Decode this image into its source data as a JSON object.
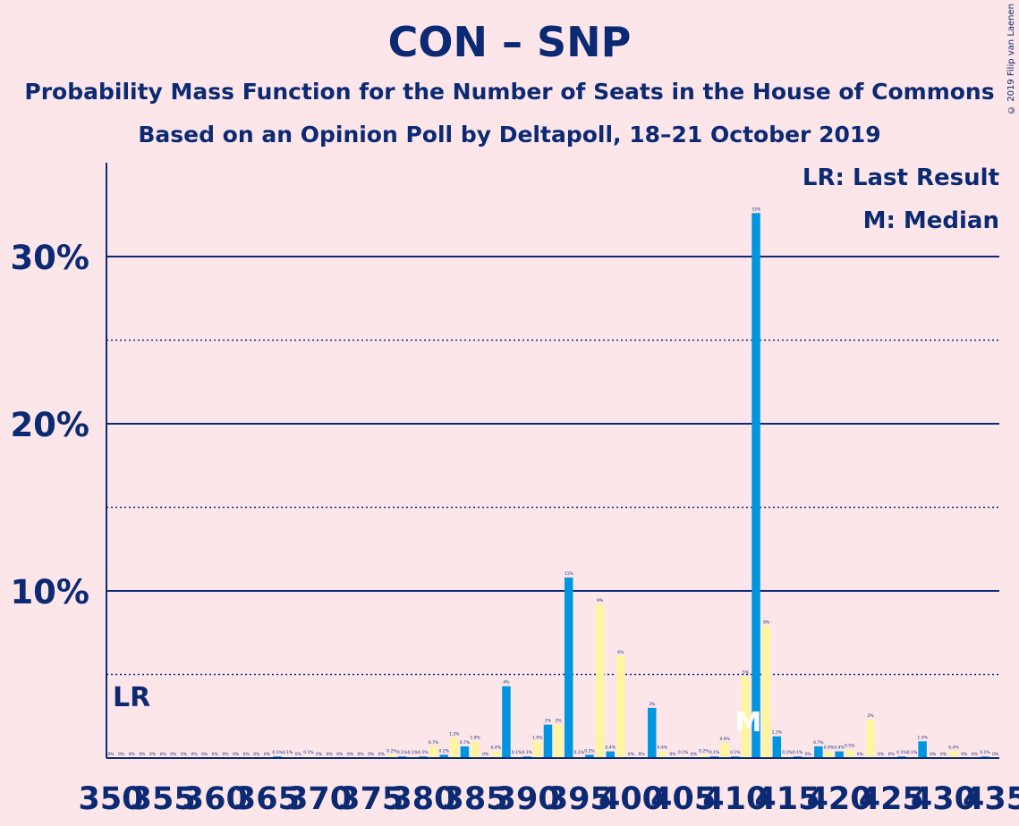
{
  "header": {
    "title": "CON – SNP",
    "subtitle": "Probability Mass Function for the Number of Seats in the House of Commons",
    "subsubtitle": "Based on an Opinion Poll by Deltapoll, 18–21 October 2019",
    "copyright": "© 2019 Filip van Laenen"
  },
  "legend": {
    "lr": "LR: Last Result",
    "m": "M: Median"
  },
  "colors": {
    "background": "#fde6ea",
    "text": "#0b2a73",
    "blue_bar": "#0096df",
    "yellow_bar": "#fff5a0"
  },
  "chart_data": {
    "type": "bar",
    "x_min": 350,
    "x_max": 435,
    "ylim": [
      0,
      35
    ],
    "y_ticks": [
      10,
      20,
      30
    ],
    "y_tick_labels": [
      "10%",
      "20%",
      "30%"
    ],
    "dotted_gridlines": [
      5,
      15,
      25
    ],
    "x_tick_values": [
      350,
      355,
      360,
      365,
      370,
      375,
      380,
      385,
      390,
      395,
      400,
      405,
      410,
      415,
      420,
      425,
      430,
      435
    ],
    "last_result_seat": 350,
    "last_result_label": "LR",
    "median_seat": 411,
    "median_label": "M",
    "bars": [
      {
        "seat": 350,
        "value": 0.0,
        "label": "0%"
      },
      {
        "seat": 351,
        "value": 0.0,
        "label": "0%"
      },
      {
        "seat": 352,
        "value": 0.0,
        "label": "0%"
      },
      {
        "seat": 353,
        "value": 0.0,
        "label": "0%"
      },
      {
        "seat": 354,
        "value": 0.0,
        "label": "0%"
      },
      {
        "seat": 355,
        "value": 0.0,
        "label": "0%"
      },
      {
        "seat": 356,
        "value": 0.0,
        "label": "0%"
      },
      {
        "seat": 357,
        "value": 0.0,
        "label": "0%"
      },
      {
        "seat": 358,
        "value": 0.0,
        "label": "0%"
      },
      {
        "seat": 359,
        "value": 0.0,
        "label": "0%"
      },
      {
        "seat": 360,
        "value": 0.0,
        "label": "0%"
      },
      {
        "seat": 361,
        "value": 0.0,
        "label": "0%"
      },
      {
        "seat": 362,
        "value": 0.0,
        "label": "0%"
      },
      {
        "seat": 363,
        "value": 0.0,
        "label": "0%"
      },
      {
        "seat": 364,
        "value": 0.0,
        "label": "0%"
      },
      {
        "seat": 365,
        "value": 0.0,
        "label": "0%"
      },
      {
        "seat": 366,
        "value": 0.1,
        "label": "0.1%"
      },
      {
        "seat": 367,
        "value": 0.1,
        "label": "0.1%"
      },
      {
        "seat": 368,
        "value": 0.0,
        "label": "0%"
      },
      {
        "seat": 369,
        "value": 0.1,
        "label": "0.1%"
      },
      {
        "seat": 370,
        "value": 0.0,
        "label": "0%"
      },
      {
        "seat": 371,
        "value": 0.0,
        "label": "0%"
      },
      {
        "seat": 372,
        "value": 0.0,
        "label": "0%"
      },
      {
        "seat": 373,
        "value": 0.0,
        "label": "0%"
      },
      {
        "seat": 374,
        "value": 0.0,
        "label": "0%"
      },
      {
        "seat": 375,
        "value": 0.0,
        "label": "0%"
      },
      {
        "seat": 376,
        "value": 0.0,
        "label": "0%"
      },
      {
        "seat": 377,
        "value": 0.2,
        "label": "0.2%"
      },
      {
        "seat": 378,
        "value": 0.1,
        "label": "0.1%"
      },
      {
        "seat": 379,
        "value": 0.1,
        "label": "0.1%"
      },
      {
        "seat": 380,
        "value": 0.1,
        "label": "0.1%"
      },
      {
        "seat": 381,
        "value": 0.7,
        "label": "0.7%"
      },
      {
        "seat": 382,
        "value": 0.2,
        "label": "0.2%"
      },
      {
        "seat": 383,
        "value": 1.2,
        "label": "1.2%"
      },
      {
        "seat": 384,
        "value": 0.7,
        "label": "0.7%"
      },
      {
        "seat": 385,
        "value": 1.0,
        "label": "1.0%"
      },
      {
        "seat": 386,
        "value": 0.0,
        "label": "0%"
      },
      {
        "seat": 387,
        "value": 0.4,
        "label": "0.4%"
      },
      {
        "seat": 388,
        "value": 4.3,
        "label": "4%"
      },
      {
        "seat": 389,
        "value": 0.1,
        "label": "0.1%"
      },
      {
        "seat": 390,
        "value": 0.1,
        "label": "0.1%"
      },
      {
        "seat": 391,
        "value": 1.0,
        "label": "1.0%"
      },
      {
        "seat": 392,
        "value": 2.0,
        "label": "2%"
      },
      {
        "seat": 393,
        "value": 2.0,
        "label": "2%"
      },
      {
        "seat": 394,
        "value": 10.8,
        "label": "11%"
      },
      {
        "seat": 395,
        "value": 0.1,
        "label": "0.1%"
      },
      {
        "seat": 396,
        "value": 0.2,
        "label": "0.2%"
      },
      {
        "seat": 397,
        "value": 9.2,
        "label": "9%"
      },
      {
        "seat": 398,
        "value": 0.4,
        "label": "0.4%"
      },
      {
        "seat": 399,
        "value": 6.1,
        "label": "6%"
      },
      {
        "seat": 400,
        "value": 0.0,
        "label": "0%"
      },
      {
        "seat": 401,
        "value": 0.0,
        "label": "0%"
      },
      {
        "seat": 402,
        "value": 3.0,
        "label": "3%"
      },
      {
        "seat": 403,
        "value": 0.4,
        "label": "0.4%"
      },
      {
        "seat": 404,
        "value": 0.0,
        "label": "0%"
      },
      {
        "seat": 405,
        "value": 0.1,
        "label": "0.1%"
      },
      {
        "seat": 406,
        "value": 0.0,
        "label": "0%"
      },
      {
        "seat": 407,
        "value": 0.2,
        "label": "0.2%"
      },
      {
        "seat": 408,
        "value": 0.1,
        "label": "0.1%"
      },
      {
        "seat": 409,
        "value": 0.9,
        "label": "0.9%"
      },
      {
        "seat": 410,
        "value": 0.1,
        "label": "0.1%"
      },
      {
        "seat": 411,
        "value": 4.9,
        "label": "5%"
      },
      {
        "seat": 412,
        "value": 32.6,
        "label": "33%"
      },
      {
        "seat": 413,
        "value": 7.9,
        "label": "8%"
      },
      {
        "seat": 414,
        "value": 1.3,
        "label": "1.3%"
      },
      {
        "seat": 415,
        "value": 0.1,
        "label": "0.1%"
      },
      {
        "seat": 416,
        "value": 0.1,
        "label": "0.1%"
      },
      {
        "seat": 417,
        "value": 0.0,
        "label": "0%"
      },
      {
        "seat": 418,
        "value": 0.7,
        "label": "0.7%"
      },
      {
        "seat": 419,
        "value": 0.4,
        "label": "0.4%"
      },
      {
        "seat": 420,
        "value": 0.4,
        "label": "0.4%"
      },
      {
        "seat": 421,
        "value": 0.5,
        "label": "0.5%"
      },
      {
        "seat": 422,
        "value": 0.0,
        "label": "0%"
      },
      {
        "seat": 423,
        "value": 2.3,
        "label": "2%"
      },
      {
        "seat": 424,
        "value": 0.0,
        "label": "0%"
      },
      {
        "seat": 425,
        "value": 0.0,
        "label": "0%"
      },
      {
        "seat": 426,
        "value": 0.1,
        "label": "0.1%"
      },
      {
        "seat": 427,
        "value": 0.1,
        "label": "0.1%"
      },
      {
        "seat": 428,
        "value": 1.0,
        "label": "1.0%"
      },
      {
        "seat": 429,
        "value": 0.0,
        "label": "0%"
      },
      {
        "seat": 430,
        "value": 0.0,
        "label": "0%"
      },
      {
        "seat": 431,
        "value": 0.4,
        "label": "0.4%"
      },
      {
        "seat": 432,
        "value": 0.0,
        "label": "0%"
      },
      {
        "seat": 433,
        "value": 0.0,
        "label": "0%"
      },
      {
        "seat": 434,
        "value": 0.1,
        "label": "0.1%"
      },
      {
        "seat": 435,
        "value": 0.0,
        "label": "0%"
      }
    ]
  }
}
